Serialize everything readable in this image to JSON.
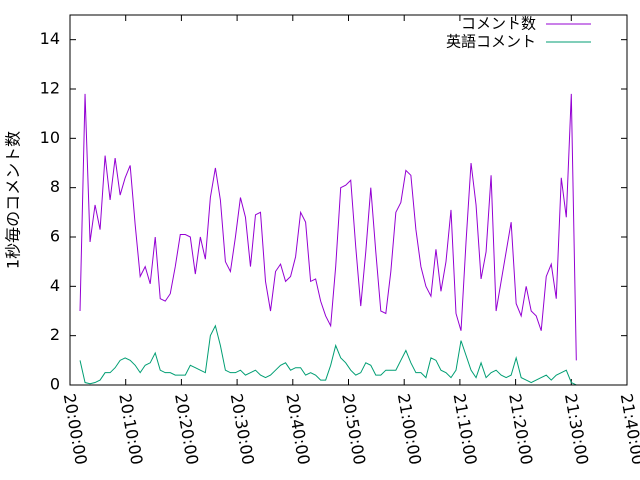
{
  "chart_data": {
    "type": "line",
    "y_label": "1秒毎のコメント数",
    "x": [
      "20:01:48",
      "20:02:42",
      "20:03:36",
      "20:04:30",
      "20:05:24",
      "20:06:18",
      "20:07:12",
      "20:08:06",
      "20:09:00",
      "20:09:54",
      "20:10:48",
      "20:11:42",
      "20:12:36",
      "20:13:30",
      "20:14:24",
      "20:15:18",
      "20:16:12",
      "20:17:06",
      "20:18:00",
      "20:18:54",
      "20:19:48",
      "20:20:42",
      "20:21:36",
      "20:22:30",
      "20:23:24",
      "20:24:18",
      "20:25:12",
      "20:26:06",
      "20:27:00",
      "20:27:54",
      "20:28:48",
      "20:29:42",
      "20:30:36",
      "20:31:30",
      "20:32:24",
      "20:33:18",
      "20:34:12",
      "20:35:06",
      "20:36:00",
      "20:36:54",
      "20:37:48",
      "20:38:42",
      "20:39:36",
      "20:40:30",
      "20:41:24",
      "20:42:18",
      "20:43:12",
      "20:44:06",
      "20:45:00",
      "20:45:54",
      "20:46:48",
      "20:47:42",
      "20:48:36",
      "20:49:30",
      "20:50:24",
      "20:51:18",
      "20:52:12",
      "20:53:06",
      "20:54:00",
      "20:54:54",
      "20:55:48",
      "20:56:42",
      "20:57:36",
      "20:58:30",
      "20:59:24",
      "21:00:18",
      "21:01:12",
      "21:02:06",
      "21:03:00",
      "21:03:54",
      "21:04:48",
      "21:05:42",
      "21:06:36",
      "21:07:30",
      "21:08:24",
      "21:09:18",
      "21:10:12",
      "21:11:06",
      "21:12:00",
      "21:12:54",
      "21:13:48",
      "21:14:42",
      "21:15:36",
      "21:16:30",
      "21:17:24",
      "21:18:18",
      "21:19:12",
      "21:20:06",
      "21:21:00",
      "21:21:54",
      "21:22:48",
      "21:23:42",
      "21:24:36",
      "21:25:30",
      "21:26:24",
      "21:27:18",
      "21:28:12",
      "21:29:06",
      "21:30:00",
      "21:30:54"
    ],
    "series": [
      {
        "name": "コメント数",
        "color": "#9400d3",
        "values": [
          3.0,
          11.8,
          5.8,
          7.3,
          6.3,
          9.3,
          7.5,
          9.2,
          7.7,
          8.4,
          8.9,
          6.5,
          4.4,
          4.8,
          4.1,
          6.0,
          3.5,
          3.4,
          3.7,
          4.8,
          6.1,
          6.1,
          6.0,
          4.5,
          6.0,
          5.1,
          7.6,
          8.8,
          7.5,
          5.0,
          4.6,
          6.0,
          7.6,
          6.8,
          4.8,
          6.9,
          7.0,
          4.2,
          3.0,
          4.6,
          4.9,
          4.2,
          4.4,
          5.2,
          7.0,
          6.6,
          4.2,
          4.3,
          3.4,
          2.8,
          2.4,
          4.8,
          8.0,
          8.1,
          8.3,
          5.6,
          3.2,
          5.4,
          8.0,
          5.4,
          3.0,
          2.9,
          4.6,
          7.0,
          7.4,
          8.7,
          8.5,
          6.3,
          4.8,
          4.0,
          3.6,
          5.5,
          3.8,
          5.0,
          7.1,
          2.9,
          2.2,
          5.8,
          9.0,
          7.3,
          4.3,
          5.4,
          8.5,
          3.0,
          4.2,
          5.4,
          6.6,
          3.3,
          2.8,
          4.0,
          3.0,
          2.8,
          2.2,
          4.4,
          4.9,
          3.5,
          8.4,
          6.8,
          11.8,
          1.0
        ]
      },
      {
        "name": "英語コメント",
        "color": "#009e73",
        "values": [
          1.0,
          0.1,
          0.05,
          0.1,
          0.2,
          0.5,
          0.5,
          0.7,
          1.0,
          1.1,
          1.0,
          0.8,
          0.5,
          0.8,
          0.9,
          1.3,
          0.6,
          0.5,
          0.5,
          0.4,
          0.4,
          0.4,
          0.8,
          0.7,
          0.6,
          0.5,
          2.0,
          2.4,
          1.6,
          0.6,
          0.5,
          0.5,
          0.6,
          0.4,
          0.5,
          0.6,
          0.4,
          0.3,
          0.4,
          0.6,
          0.8,
          0.9,
          0.6,
          0.7,
          0.7,
          0.4,
          0.5,
          0.4,
          0.2,
          0.2,
          0.8,
          1.6,
          1.1,
          0.9,
          0.6,
          0.4,
          0.5,
          0.9,
          0.8,
          0.4,
          0.4,
          0.6,
          0.6,
          0.6,
          1.0,
          1.4,
          0.9,
          0.5,
          0.5,
          0.3,
          1.1,
          1.0,
          0.6,
          0.5,
          0.3,
          0.6,
          1.8,
          1.2,
          0.6,
          0.3,
          0.9,
          0.3,
          0.5,
          0.6,
          0.4,
          0.3,
          0.4,
          1.1,
          0.3,
          0.2,
          0.1,
          0.2,
          0.3,
          0.4,
          0.2,
          0.4,
          0.5,
          0.6,
          0.1,
          0.0
        ]
      }
    ],
    "xlim": [
      "20:00:00",
      "21:40:00"
    ],
    "xticks": [
      "20:00:00",
      "20:10:00",
      "20:20:00",
      "20:30:00",
      "20:40:00",
      "20:50:00",
      "21:00:00",
      "21:10:00",
      "21:20:00",
      "21:30:00",
      "21:40:00"
    ],
    "ylim": [
      0,
      15
    ],
    "yticks": [
      0,
      2,
      4,
      6,
      8,
      10,
      12,
      14
    ],
    "legend": "top-right"
  }
}
